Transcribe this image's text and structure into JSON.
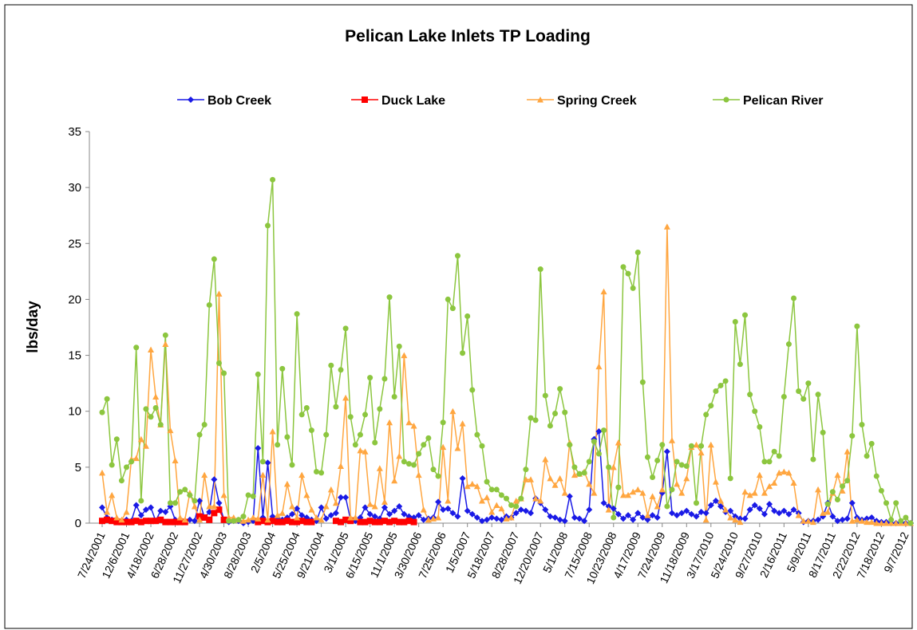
{
  "chart_data": {
    "type": "line",
    "title": "Pelican Lake Inlets TP Loading",
    "y_label": "lbs/day",
    "ylim": [
      0,
      35
    ],
    "yticks": [
      0,
      5,
      10,
      15,
      20,
      25,
      30,
      35
    ],
    "grid": false,
    "legend": "top",
    "categories": [
      "7/24/2001",
      null,
      null,
      null,
      null,
      "12/6/2001",
      null,
      null,
      null,
      null,
      "4/18/2002",
      null,
      null,
      null,
      null,
      "6/28/2002",
      null,
      null,
      null,
      null,
      "11/27/2002",
      null,
      null,
      null,
      null,
      "4/30/2003",
      null,
      null,
      null,
      null,
      "8/28/2003",
      null,
      null,
      null,
      null,
      "2/5/2004",
      null,
      null,
      null,
      null,
      "5/25/2004",
      null,
      null,
      null,
      null,
      "9/21/2004",
      null,
      null,
      null,
      null,
      "3/1/2005",
      null,
      null,
      null,
      null,
      "6/15/2005",
      null,
      null,
      null,
      null,
      "11/1/2005",
      null,
      null,
      null,
      null,
      "3/30/2006",
      null,
      null,
      null,
      null,
      "7/25/2006",
      null,
      null,
      null,
      null,
      "1/5/2007",
      null,
      null,
      null,
      null,
      "5/18/2007",
      null,
      null,
      null,
      null,
      "8/28/2007",
      null,
      null,
      null,
      null,
      "12/20/2007",
      null,
      null,
      null,
      null,
      "5/1/2008",
      null,
      null,
      null,
      null,
      "7/15/2008",
      null,
      null,
      null,
      null,
      "10/23/2008",
      null,
      null,
      null,
      null,
      "4/17/2009",
      null,
      null,
      null,
      null,
      "7/24/2009",
      null,
      null,
      null,
      null,
      "11/18/2009",
      null,
      null,
      null,
      null,
      "3/17/2010",
      null,
      null,
      null,
      null,
      "5/24/2010",
      null,
      null,
      null,
      null,
      "9/27/2010",
      null,
      null,
      null,
      null,
      "2/16/2011",
      null,
      null,
      null,
      null,
      "5/9/2011",
      null,
      null,
      null,
      null,
      "8/17/2011",
      null,
      null,
      null,
      null,
      "2/22/2012",
      null,
      null,
      null,
      null,
      "7/18/2012",
      null,
      null,
      null,
      null,
      "9/7/2012",
      null
    ],
    "series": [
      {
        "name": "Bob Creek",
        "color": "#1a1ae6",
        "marker": "diamond",
        "values": [
          1.4,
          0.5,
          0.3,
          0.2,
          0.2,
          0.3,
          0.2,
          1.6,
          0.7,
          1.2,
          1.4,
          0.2,
          1.1,
          1,
          1.5,
          0.3,
          0.2,
          0.2,
          0.3,
          0.2,
          2,
          0.5,
          1,
          3.9,
          1.8,
          0.3,
          0.1,
          0.2,
          0.2,
          0,
          0.1,
          0.2,
          6.7,
          0.5,
          5.4,
          0.6,
          0.5,
          0.3,
          0.5,
          0.8,
          1.3,
          0.7,
          0.5,
          0.3,
          0.2,
          1.4,
          0.4,
          0.7,
          0.9,
          2.3,
          2.3,
          0.3,
          0.2,
          0.5,
          1.4,
          0.8,
          0.6,
          0.4,
          1.4,
          0.8,
          1.1,
          1.5,
          0.8,
          0.6,
          0.5,
          0.7,
          0.3,
          0.4,
          0.5,
          1.9,
          1.2,
          1.3,
          0.9,
          0.6,
          4,
          1.1,
          0.8,
          0.5,
          0.2,
          0.3,
          0.5,
          0.4,
          0.3,
          0.6,
          0.5,
          0.9,
          1.2,
          1.1,
          0.9,
          2.2,
          1.8,
          1.2,
          0.6,
          0.5,
          0.3,
          0.2,
          2.4,
          0.5,
          0.4,
          0.2,
          1.2,
          7.5,
          8.2,
          1.8,
          1.5,
          1.3,
          0.8,
          0.4,
          0.7,
          0.3,
          0.9,
          0.5,
          0.3,
          0.7,
          0.5,
          2.7,
          6.4,
          0.9,
          0.7,
          0.9,
          1.1,
          0.8,
          0.6,
          1,
          0.9,
          1.6,
          2,
          1.5,
          1,
          1.1,
          0.6,
          0.4,
          0.4,
          1.2,
          1.6,
          1.3,
          0.8,
          1.7,
          1.1,
          0.9,
          1.1,
          0.8,
          1.2,
          0.9,
          0.1,
          0.2,
          0.2,
          0.3,
          0.6,
          1.8,
          0.6,
          0.2,
          0.3,
          0.4,
          1.8,
          0.5,
          0.3,
          0.4,
          0.5,
          0.2,
          0.1,
          0.1,
          0,
          0,
          0.1,
          0,
          0
        ]
      },
      {
        "name": "Duck Lake",
        "color": "#ff0000",
        "marker": "square",
        "values": [
          0.2,
          0.3,
          0.2,
          0.1,
          0.1,
          0.1,
          0.1,
          0.2,
          0.1,
          0.2,
          0.2,
          0.2,
          0.3,
          0.1,
          0.1,
          0.1,
          0.1,
          0.1,
          null,
          null,
          0.6,
          0.5,
          0.3,
          0.9,
          1.2,
          0.3,
          null,
          null,
          null,
          null,
          null,
          null,
          0.1,
          0.2,
          0.1,
          0.2,
          0.1,
          0.1,
          0.2,
          0.1,
          0.1,
          0.2,
          0.1,
          0.1,
          null,
          null,
          null,
          null,
          0.2,
          0.1,
          0.3,
          0.2,
          null,
          0.1,
          0.1,
          0.2,
          0.1,
          0.1,
          0.2,
          0.1,
          0.2,
          0.1,
          0.1,
          0.2,
          0.1,
          null,
          null,
          null,
          null,
          null,
          null,
          null,
          null,
          null,
          null,
          null,
          null,
          null,
          null,
          null,
          null,
          null,
          null,
          null,
          null,
          null,
          null,
          null,
          null,
          null,
          null,
          null,
          null,
          null,
          null,
          null,
          null,
          null,
          null,
          null,
          null,
          null,
          null,
          null,
          null,
          null,
          null,
          null,
          null,
          null,
          null,
          null,
          null,
          null,
          null,
          null,
          null,
          null,
          null,
          null,
          null,
          null,
          null,
          null,
          null,
          null,
          null,
          null,
          null,
          null,
          null,
          null,
          null,
          null,
          null,
          null,
          null,
          null,
          null,
          null,
          null,
          null,
          null,
          null,
          null,
          null,
          null,
          null,
          null,
          null,
          null,
          null,
          null,
          null,
          null,
          null,
          null,
          null,
          null,
          null,
          null,
          null,
          null,
          null,
          null,
          null,
          null
        ]
      },
      {
        "name": "Spring Creek",
        "color": "#ffa640",
        "marker": "triangle",
        "values": [
          4.5,
          1,
          2.5,
          0.5,
          0.3,
          1,
          5.7,
          5.8,
          7.5,
          6.9,
          15.5,
          11.3,
          8.8,
          16,
          8.3,
          5.6,
          0.5,
          0.3,
          2.7,
          1.5,
          0.3,
          4.3,
          1.5,
          1.5,
          20.5,
          2.5,
          0.5,
          0.5,
          0.3,
          0.2,
          0.3,
          0.5,
          0.4,
          4.3,
          0.3,
          8.2,
          0.7,
          0.9,
          3.5,
          1.5,
          0.5,
          4.3,
          2.5,
          1.2,
          0.5,
          0.3,
          1.5,
          3,
          1.8,
          5.1,
          11.2,
          0.5,
          0.5,
          6.5,
          6.4,
          1.7,
          1.5,
          4.9,
          1.9,
          9,
          3.8,
          6,
          15,
          9,
          8.7,
          4.3,
          1.2,
          0.3,
          0.4,
          0.5,
          6.8,
          2,
          10,
          6.7,
          8.9,
          3.3,
          3.5,
          3.3,
          2,
          2.3,
          1,
          1.6,
          1.3,
          0.4,
          0.5,
          2,
          2.2,
          3.9,
          3.9,
          2.2,
          2,
          5.7,
          4,
          3.4,
          4,
          2.7,
          7.2,
          4.3,
          4.4,
          4.6,
          3.5,
          2.7,
          14,
          20.7,
          1.2,
          5,
          7.2,
          2.5,
          2.5,
          2.8,
          3,
          2.7,
          0.7,
          2.4,
          1.5,
          3,
          26.5,
          7.4,
          3.5,
          2.7,
          4,
          6.8,
          7,
          6.3,
          0.3,
          7,
          3.7,
          2,
          1.2,
          0.5,
          0.3,
          0.1,
          2.8,
          2.5,
          2.7,
          4.3,
          2.7,
          3.3,
          3.6,
          4.5,
          4.6,
          4.5,
          3.6,
          0.7,
          0.2,
          0.2,
          0.1,
          3,
          0.9,
          1,
          2.7,
          4.3,
          2.9,
          6.4,
          0.2,
          0.3,
          0.2,
          0.1,
          0.1,
          0,
          0,
          0,
          0,
          0,
          0,
          0,
          0
        ]
      },
      {
        "name": "Pelican River",
        "color": "#8cc63f",
        "marker": "circle",
        "values": [
          9.9,
          11.1,
          5.2,
          7.5,
          3.8,
          5,
          5.5,
          15.7,
          2,
          10.2,
          9.5,
          10.3,
          8.8,
          16.8,
          1.8,
          1.8,
          2.8,
          3,
          2.5,
          2,
          7.9,
          8.8,
          19.5,
          23.6,
          14.3,
          13.4,
          0.2,
          0.2,
          0.3,
          0.6,
          2.5,
          2.4,
          13.3,
          5.5,
          26.6,
          30.7,
          7,
          13.8,
          7.7,
          5.2,
          18.7,
          9.7,
          10.3,
          8.3,
          4.6,
          4.5,
          7.9,
          14.1,
          10.4,
          13.7,
          17.4,
          9.5,
          7,
          7.9,
          9.7,
          13,
          7.2,
          10.2,
          12.9,
          20.2,
          11.3,
          15.8,
          5.5,
          5.3,
          5.2,
          6.2,
          7,
          7.6,
          4.8,
          4.2,
          9,
          20,
          19.2,
          23.9,
          15.2,
          18.5,
          11.9,
          7.9,
          6.9,
          3.7,
          3,
          3,
          2.5,
          2.2,
          1.6,
          1.5,
          2.2,
          4.8,
          9.4,
          9.2,
          22.7,
          11.4,
          8.7,
          9.8,
          12,
          9.9,
          7,
          5,
          4.4,
          4.5,
          5.5,
          7.3,
          6.2,
          8.3,
          5,
          0.5,
          3.2,
          22.9,
          22.3,
          21,
          24.2,
          12.6,
          5.9,
          4.1,
          5.6,
          7,
          1.5,
          3,
          5.5,
          5.2,
          5.1,
          6.9,
          1.8,
          6.9,
          9.7,
          10.5,
          11.8,
          12.3,
          12.7,
          4,
          18,
          14.2,
          18.6,
          11.5,
          10,
          8.6,
          5.5,
          5.5,
          6.4,
          6,
          11.3,
          16,
          20.1,
          11.8,
          11.1,
          12.5,
          5.7,
          11.5,
          8.1,
          1.7,
          2.8,
          2.1,
          3.3,
          3.8,
          7.8,
          17.6,
          8.8,
          6,
          7.1,
          4.2,
          2.9,
          1.8,
          0.3,
          1.8,
          0.2,
          0.5,
          0
        ]
      }
    ]
  }
}
